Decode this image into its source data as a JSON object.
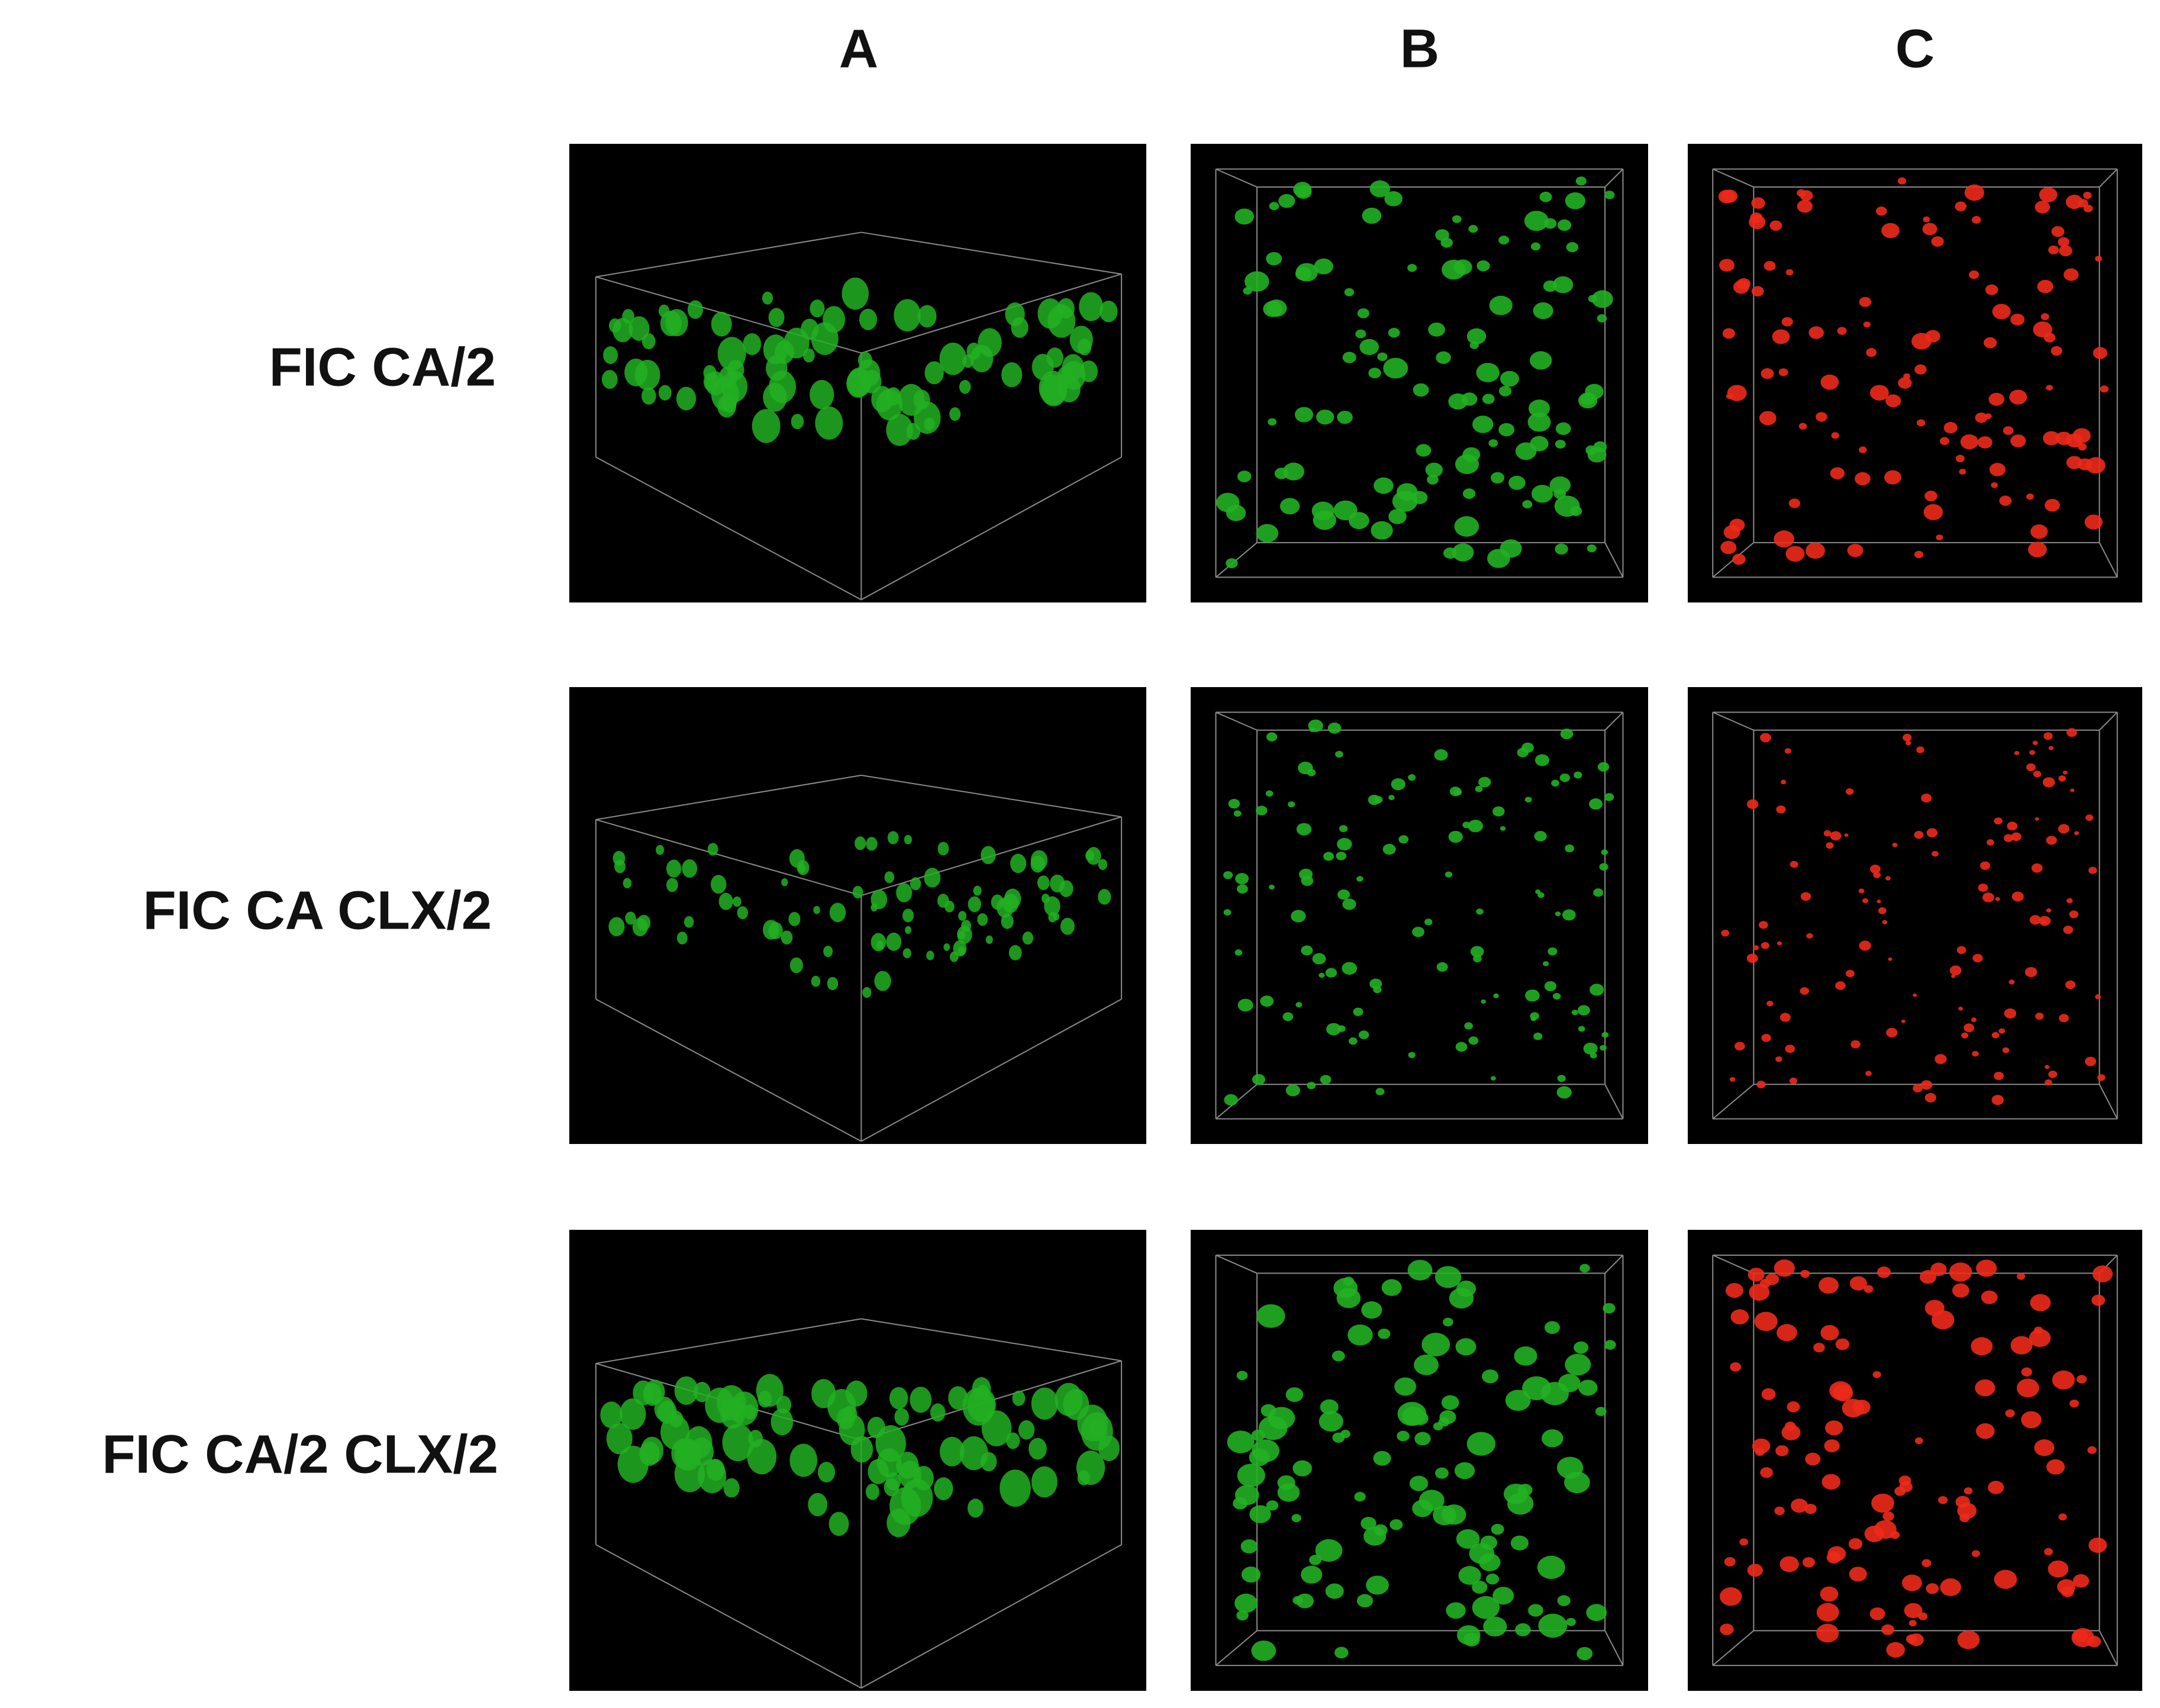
{
  "column_labels": [
    "A",
    "B",
    "C"
  ],
  "row_labels": [
    "FIC CA/2",
    "FIC CA CLX/2",
    "FIC CA/2 CLX/2"
  ]
}
